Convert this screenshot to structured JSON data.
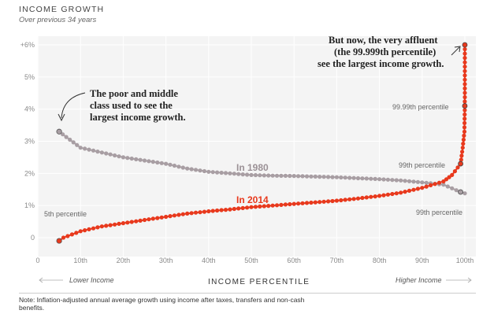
{
  "header": {
    "title": "INCOME GROWTH",
    "subtitle": "Over previous 34 years"
  },
  "chart_data": {
    "type": "line",
    "title": "INCOME GROWTH",
    "subtitle": "Over previous 34 years",
    "xlabel": "INCOME PERCENTILE",
    "ylabel": "",
    "xlim": [
      0,
      100
    ],
    "ylim": [
      -0.5,
      6
    ],
    "x_ticks": [
      "0",
      "10th",
      "20th",
      "30th",
      "40th",
      "50th",
      "60th",
      "70th",
      "80th",
      "90th",
      "100th"
    ],
    "y_ticks": [
      "0",
      "1%",
      "2%",
      "3%",
      "4%",
      "5%",
      "+6%"
    ],
    "grid": true,
    "series": [
      {
        "name": "In 1980",
        "color": "#a89ea3",
        "x": [
          5,
          10,
          15,
          20,
          25,
          30,
          35,
          40,
          45,
          50,
          55,
          60,
          65,
          70,
          75,
          80,
          85,
          90,
          95,
          99,
          100
        ],
        "y": [
          3.3,
          2.8,
          2.65,
          2.5,
          2.4,
          2.3,
          2.15,
          2.05,
          2.0,
          1.95,
          1.93,
          1.92,
          1.9,
          1.88,
          1.85,
          1.82,
          1.78,
          1.72,
          1.65,
          1.42,
          1.38
        ]
      },
      {
        "name": "In 2014",
        "color": "#e8391d",
        "x": [
          5,
          6,
          8,
          10,
          15,
          20,
          25,
          30,
          35,
          40,
          45,
          50,
          55,
          60,
          65,
          70,
          75,
          80,
          85,
          90,
          95,
          97,
          99,
          99.5,
          99.9,
          99.99,
          99.999
        ],
        "y": [
          -0.1,
          0.0,
          0.1,
          0.2,
          0.35,
          0.45,
          0.55,
          0.65,
          0.75,
          0.82,
          0.88,
          0.95,
          1.0,
          1.05,
          1.1,
          1.15,
          1.22,
          1.3,
          1.4,
          1.55,
          1.75,
          1.95,
          2.3,
          2.8,
          3.3,
          4.1,
          6.0
        ]
      }
    ],
    "annotations": [
      {
        "text": "The poor and middle class used to see the largest income growth."
      },
      {
        "text": "But now, the very affluent (the 99.999th percentile) see the largest income growth."
      },
      {
        "text": "5th percentile"
      },
      {
        "text": "99.99th percentile"
      },
      {
        "text": "99th percentile"
      },
      {
        "text": "99th percentile"
      }
    ]
  },
  "annotations": {
    "poor_line1": "The poor and middle",
    "poor_line2": "class used to see the",
    "poor_line3": "largest income growth.",
    "affluent_line1": "But now, the very affluent",
    "affluent_line2": "(the 99.999th percentile)",
    "affluent_line3": "see the largest income growth.",
    "label_5th": "5th percentile",
    "label_9999": "99.99th percentile",
    "label_99_2014": "99th percentile",
    "label_99_1980": "99th percentile",
    "label_1980": "In 1980",
    "label_2014": "In 2014"
  },
  "xaxis": {
    "title": "INCOME PERCENTILE",
    "lower": "Lower Income",
    "higher": "Higher Income"
  },
  "note": "Note: Inflation-adjusted annual average growth using income after taxes, transfers and non-cash benefits."
}
